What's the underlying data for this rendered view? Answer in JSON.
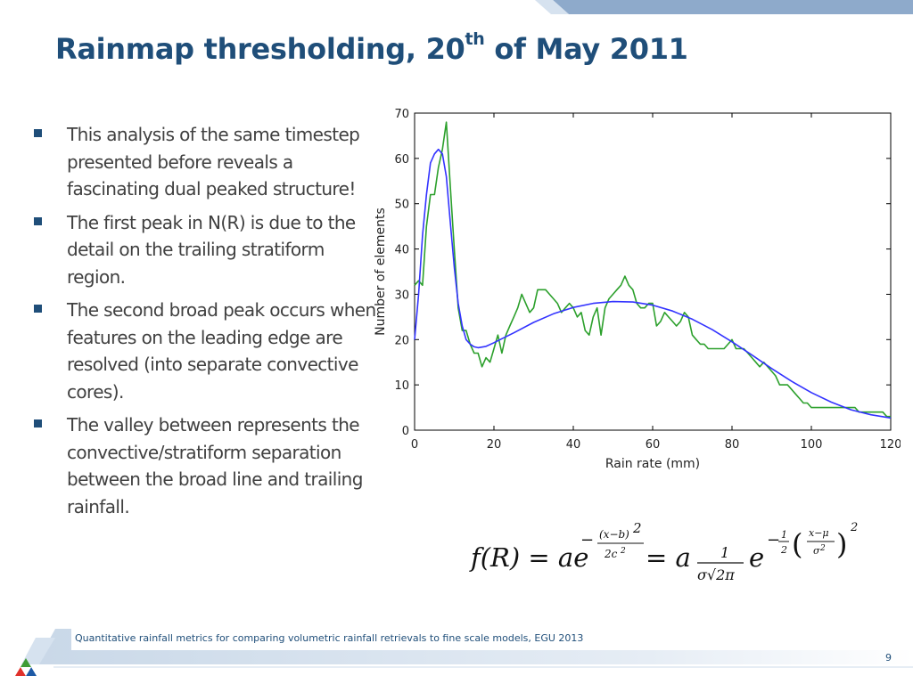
{
  "slide": {
    "title_main": "Rainmap thresholding, 20",
    "title_sup": "th",
    "title_end": " of May 2011",
    "bullets": [
      "This analysis of the same timestep presented before reveals a fascinating dual peaked structure!",
      "The first peak in N(R) is due to the detail on the trailing stratiform region.",
      "The second broad peak occurs when features on the leading edge are resolved (into separate convective cores).",
      "The valley between represents the convective/stratiform separation between the broad line and trailing rainfall."
    ],
    "footer": "Quantitative rainfall metrics for comparing volumetric rainfall retrievals to fine scale models, EGU 2013",
    "page_number": "9",
    "colors": {
      "title": "#1f4e79",
      "band": "#8eaacb",
      "observed": "#2ca02c",
      "fit": "#3333ff"
    },
    "icons": [
      "square-bullet-icon",
      "tricolor-triangle-logo-icon"
    ]
  },
  "chart_data": {
    "type": "line",
    "xlabel": "Rain rate (mm)",
    "ylabel": "Number of elements",
    "xlim": [
      0,
      120
    ],
    "ylim": [
      0,
      70
    ],
    "xticks": [
      0,
      20,
      40,
      60,
      80,
      100,
      120
    ],
    "yticks": [
      0,
      10,
      20,
      30,
      40,
      50,
      60,
      70
    ],
    "grid": false,
    "series": [
      {
        "key": "observed",
        "color": "#2ca02c",
        "x": [
          0,
          1,
          2,
          3,
          4,
          5,
          6,
          7,
          8,
          9,
          10,
          11,
          12,
          13,
          14,
          15,
          16,
          17,
          18,
          19,
          20,
          21,
          22,
          23,
          24,
          25,
          26,
          27,
          28,
          29,
          30,
          31,
          32,
          33,
          34,
          35,
          36,
          37,
          38,
          39,
          40,
          41,
          42,
          43,
          44,
          45,
          46,
          47,
          48,
          49,
          50,
          51,
          52,
          53,
          54,
          55,
          56,
          57,
          58,
          59,
          60,
          61,
          62,
          63,
          64,
          65,
          66,
          67,
          68,
          69,
          70,
          71,
          72,
          73,
          74,
          75,
          76,
          77,
          78,
          79,
          80,
          81,
          82,
          83,
          84,
          85,
          86,
          87,
          88,
          89,
          90,
          91,
          92,
          93,
          94,
          95,
          96,
          97,
          98,
          99,
          100,
          101,
          102,
          103,
          104,
          105,
          106,
          107,
          108,
          109,
          110,
          111,
          112,
          113,
          114,
          115,
          116,
          117,
          118,
          119,
          120
        ],
        "y": [
          32,
          33,
          32,
          45,
          52,
          52,
          58,
          62,
          68,
          54,
          40,
          27,
          22,
          22,
          19,
          17,
          17,
          14,
          16,
          15,
          18,
          21,
          17,
          21,
          23,
          25,
          27,
          30,
          28,
          26,
          27,
          31,
          31,
          31,
          30,
          29,
          28,
          26,
          27,
          28,
          27,
          25,
          26,
          22,
          21,
          25,
          27,
          21,
          27,
          29,
          30,
          31,
          32,
          34,
          32,
          31,
          28,
          27,
          27,
          28,
          28,
          23,
          24,
          26,
          25,
          24,
          23,
          24,
          26,
          25,
          21,
          20,
          19,
          19,
          18,
          18,
          18,
          18,
          18,
          19,
          20,
          18,
          18,
          18,
          17,
          16,
          15,
          14,
          15,
          14,
          13,
          12,
          10,
          10,
          10,
          9,
          8,
          7,
          6,
          6,
          5,
          5,
          5,
          5,
          5,
          5,
          5,
          5,
          5,
          5,
          5,
          5,
          4,
          4,
          4,
          4,
          4,
          4,
          4,
          3,
          3
        ]
      },
      {
        "key": "fit",
        "color": "#3333ff",
        "x": [
          0,
          1,
          2,
          3,
          4,
          5,
          6,
          7,
          8,
          9,
          10,
          11,
          12,
          13,
          14,
          15,
          16,
          18,
          20,
          22,
          25,
          30,
          35,
          40,
          45,
          50,
          55,
          60,
          65,
          70,
          75,
          80,
          85,
          90,
          95,
          100,
          105,
          110,
          115,
          120
        ],
        "y": [
          20,
          30,
          43,
          52,
          59,
          61,
          62,
          61,
          56,
          46,
          36,
          28,
          23,
          20,
          19,
          18.4,
          18.2,
          18.5,
          19.3,
          20.2,
          21.5,
          23.8,
          25.7,
          27.1,
          28.0,
          28.4,
          28.3,
          27.6,
          26.3,
          24.5,
          22.2,
          19.5,
          16.6,
          13.6,
          10.8,
          8.3,
          6.2,
          4.5,
          3.4,
          2.7
        ]
      }
    ]
  },
  "formula": {
    "lhs": "f(R) = ae",
    "exp1_num": "(x−b)",
    "exp1_sq": "2",
    "exp1_den": "2c",
    "exp1_den_sq": "2",
    "eq2": "= a",
    "frac_num": "1",
    "frac_den": "σ√2π",
    "e2": "e",
    "half_num": "1",
    "half_den": "2",
    "z_num": "x−μ",
    "z_den": "σ",
    "z_den_sq": "2",
    "outer_sq": "2"
  }
}
